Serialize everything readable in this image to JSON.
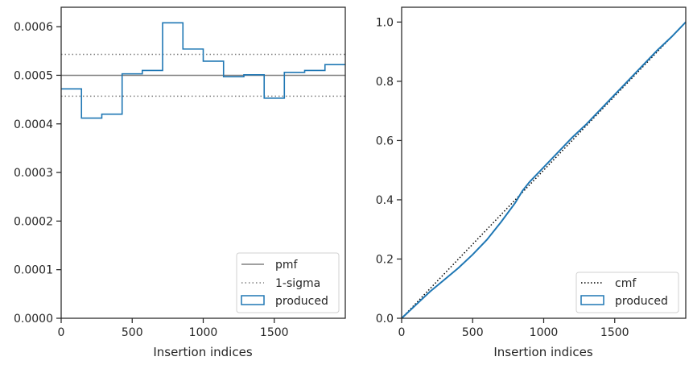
{
  "chart_data": [
    {
      "type": "histogram",
      "xlabel": "Insertion indices",
      "ylabel": "",
      "xlim": [
        0,
        2000
      ],
      "ylim": [
        0,
        0.00064
      ],
      "xticks": [
        0,
        500,
        1000,
        1500
      ],
      "yticks": [
        0.0,
        0.0001,
        0.0002,
        0.0003,
        0.0004,
        0.0005,
        0.0006
      ],
      "ytick_labels": [
        "0.0000",
        "0.0001",
        "0.0002",
        "0.0003",
        "0.0004",
        "0.0005",
        "0.0006"
      ],
      "pmf": 0.0005,
      "sigma_lines": [
        0.000457,
        0.000543
      ],
      "bin_edges": [
        0,
        143,
        286,
        429,
        571,
        714,
        857,
        1000,
        1143,
        1286,
        1429,
        1571,
        1714,
        1857,
        2000
      ],
      "bin_values": [
        0.000472,
        0.000412,
        0.00042,
        0.000503,
        0.00051,
        0.000608,
        0.000554,
        0.000529,
        0.000497,
        0.000501,
        0.000453,
        0.000506,
        0.00051,
        0.000522
      ],
      "legend": {
        "position": "lower right",
        "entries": [
          {
            "label": "pmf",
            "style": "solid",
            "color": "#808080"
          },
          {
            "label": "1-sigma",
            "style": "dotted",
            "color": "#808080"
          },
          {
            "label": "produced",
            "style": "patch",
            "color": "#1f77b4"
          }
        ]
      },
      "colors": {
        "produced": "#1f77b4",
        "pmf": "#808080",
        "sigma": "#808080"
      }
    },
    {
      "type": "line",
      "xlabel": "Insertion indices",
      "ylabel": "",
      "xlim": [
        0,
        2000
      ],
      "ylim": [
        0,
        1.05
      ],
      "xticks": [
        0,
        500,
        1000,
        1500
      ],
      "yticks": [
        0.0,
        0.2,
        0.4,
        0.6,
        0.8,
        1.0
      ],
      "ytick_labels": [
        "0.0",
        "0.2",
        "0.4",
        "0.6",
        "0.8",
        "1.0"
      ],
      "series": [
        {
          "name": "cmf",
          "style": "dotted",
          "color": "#000000",
          "x": [
            0,
            2000
          ],
          "y": [
            0,
            1.0
          ]
        },
        {
          "name": "produced",
          "style": "step",
          "color": "#1f77b4",
          "x": [
            0,
            100,
            200,
            300,
            400,
            500,
            600,
            700,
            800,
            850,
            900,
            1000,
            1100,
            1200,
            1300,
            1400,
            1500,
            1600,
            1700,
            1800,
            1900,
            2000
          ],
          "y": [
            0,
            0.045,
            0.09,
            0.13,
            0.17,
            0.215,
            0.265,
            0.325,
            0.39,
            0.43,
            0.46,
            0.51,
            0.56,
            0.61,
            0.655,
            0.705,
            0.755,
            0.805,
            0.855,
            0.905,
            0.95,
            1.0
          ]
        }
      ],
      "legend": {
        "position": "lower right",
        "entries": [
          {
            "label": "cmf",
            "style": "dotted",
            "color": "#000000"
          },
          {
            "label": "produced",
            "style": "patch",
            "color": "#1f77b4"
          }
        ]
      }
    }
  ]
}
